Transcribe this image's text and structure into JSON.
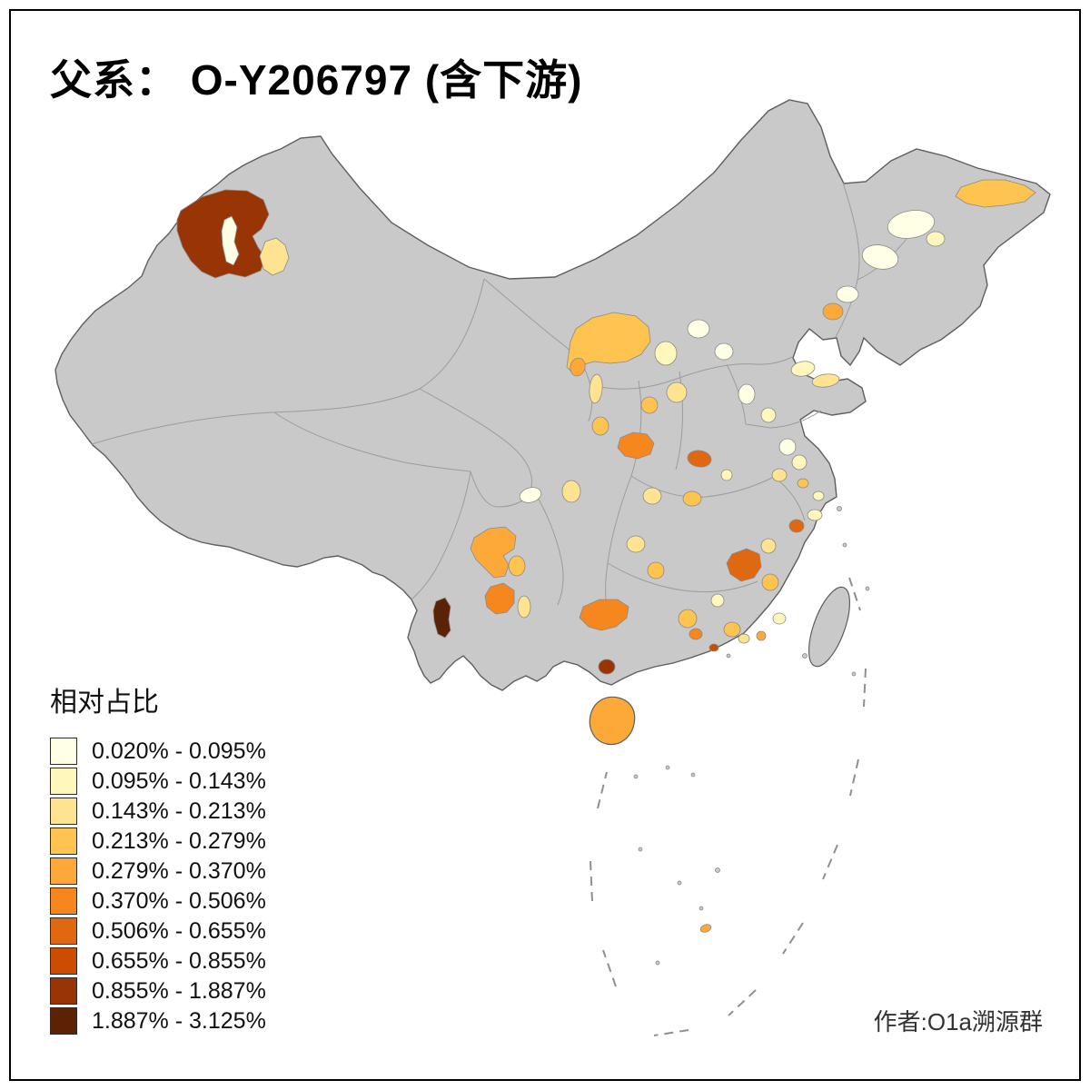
{
  "title": "父系： O-Y206797 (含下游)",
  "legend": {
    "title": "相对占比",
    "items": [
      {
        "label": "0.020% - 0.095%",
        "color": "#FFFFE5"
      },
      {
        "label": "0.095% - 0.143%",
        "color": "#FFF7BC"
      },
      {
        "label": "0.143% - 0.213%",
        "color": "#FEE391"
      },
      {
        "label": "0.213% - 0.279%",
        "color": "#FEC44F"
      },
      {
        "label": "0.279% - 0.370%",
        "color": "#FDA939"
      },
      {
        "label": "0.370% - 0.506%",
        "color": "#F5871E"
      },
      {
        "label": "0.506% - 0.655%",
        "color": "#E06810"
      },
      {
        "label": "0.655% - 0.855%",
        "color": "#CC4C02"
      },
      {
        "label": "0.855% - 1.887%",
        "color": "#993404"
      },
      {
        "label": "1.887% - 3.125%",
        "color": "#5C2205"
      }
    ]
  },
  "attribution": "作者:O1a溯源群",
  "map": {
    "base_fill": "#C9C9C9",
    "province_border": "#9C9C9C",
    "outline": "#5E5E5E",
    "sea": "#FFFFFF",
    "dash_line": "#8F8F8F"
  }
}
